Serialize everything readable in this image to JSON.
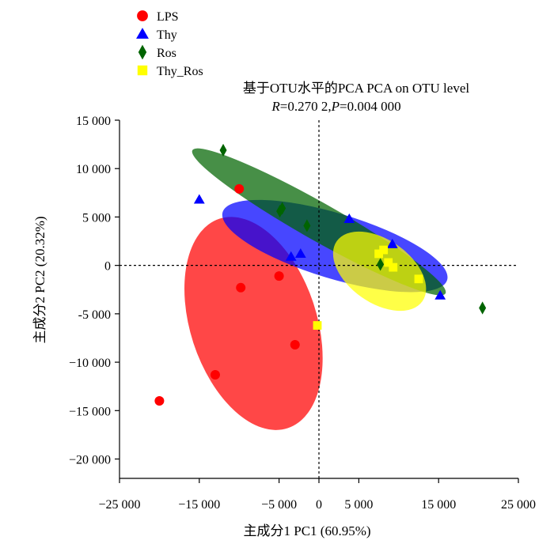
{
  "chart_data": {
    "type": "scatter",
    "title": "基于OTU水平的PCA PCA on OTU level",
    "subtitle_r_label": "R",
    "subtitle_r_value": "=0.270 2,",
    "subtitle_p_label": "P",
    "subtitle_p_value": "=0.004 000",
    "xlabel": "主成分1 PC1 (60.95%)",
    "ylabel": "主成分2 PC2 (20.32%)",
    "xlim": [
      -25000,
      25000
    ],
    "ylim": [
      -22000,
      15000
    ],
    "xticks": [
      -25000,
      -15000,
      -5000,
      0,
      5000,
      15000,
      25000
    ],
    "xtick_labels": [
      "−25 000",
      "−15 000",
      "−5 000",
      "0",
      "5 000",
      "15 000",
      "25 000"
    ],
    "yticks": [
      15000,
      10000,
      5000,
      0,
      -5000,
      -10000,
      -15000,
      -20000
    ],
    "ytick_labels": [
      "15 000",
      "10 000",
      "5 000",
      "0",
      "-5 000",
      "−10 000",
      "−15 000",
      "−20 000"
    ],
    "legend_position": "top-left",
    "series": [
      {
        "name": "LPS",
        "color": "#ff0000",
        "marker": "circle",
        "points": [
          [
            -20000,
            -14000
          ],
          [
            -10000,
            7900
          ],
          [
            -9800,
            -2300
          ],
          [
            -13000,
            -11300
          ],
          [
            -5000,
            -1100
          ],
          [
            -3000,
            -8200
          ]
        ],
        "ellipse": {
          "center": [
            -8200,
            -6000
          ],
          "rx": 7800,
          "ry": 11500,
          "angle_deg": 15
        }
      },
      {
        "name": "Thy",
        "color": "#0000ff",
        "marker": "triangle",
        "points": [
          [
            -15000,
            6800
          ],
          [
            -3500,
            900
          ],
          [
            -2300,
            1200
          ],
          [
            3800,
            4800
          ],
          [
            9200,
            2200
          ],
          [
            15200,
            -3100
          ]
        ],
        "ellipse": {
          "center": [
            2000,
            2000
          ],
          "rx": 14500,
          "ry": 3400,
          "angle_deg": -14
        }
      },
      {
        "name": "Ros",
        "color": "#006400",
        "marker": "diamond",
        "points": [
          [
            -12000,
            11900
          ],
          [
            -4900,
            5600
          ],
          [
            -4600,
            5900
          ],
          [
            -1500,
            4100
          ],
          [
            7700,
            100
          ],
          [
            20500,
            -4400
          ]
        ],
        "ellipse": {
          "center": [
            0,
            4500
          ],
          "rx": 17500,
          "ry": 2000,
          "angle_deg": -25
        }
      },
      {
        "name": "Thy_Ros",
        "color": "#ffff00",
        "marker": "square",
        "points": [
          [
            7500,
            1200
          ],
          [
            8100,
            1600
          ],
          [
            8700,
            300
          ],
          [
            9300,
            -200
          ],
          [
            12500,
            -1400
          ],
          [
            -200,
            -6200
          ]
        ],
        "ellipse": {
          "center": [
            7600,
            -600
          ],
          "rx": 6200,
          "ry": 3400,
          "angle_deg": -30
        }
      }
    ]
  }
}
